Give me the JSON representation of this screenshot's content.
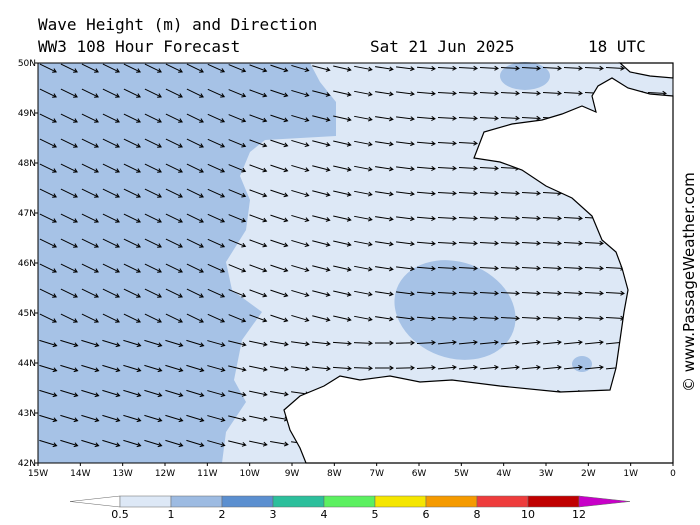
{
  "header": {
    "title": "Wave Height (m) and Direction",
    "subtitle": "WW3 108 Hour Forecast",
    "date": "Sat 21 Jun 2025",
    "time": "18 UTC"
  },
  "map": {
    "lat_labels": [
      "50N",
      "49N",
      "48N",
      "47N",
      "46N",
      "45N",
      "44N",
      "43N",
      "42N"
    ],
    "lon_labels": [
      "15W",
      "14W",
      "13W",
      "12W",
      "11W",
      "10W",
      "9W",
      "8W",
      "7W",
      "6W",
      "5W",
      "4W",
      "3W",
      "2W",
      "1W",
      "0"
    ]
  },
  "legend": {
    "labels": [
      "0.5",
      "1",
      "2",
      "3",
      "4",
      "5",
      "6",
      "8",
      "10",
      "12"
    ],
    "colors": [
      "#dde8f6",
      "#9dbbe2",
      "#5b8fd0",
      "#2cbf9c",
      "#5cf060",
      "#f5e600",
      "#f59a00",
      "#ee3c3c",
      "#c00000"
    ],
    "under_color": "#ffffff",
    "over_color": "#c800c8"
  },
  "credit": "© www.PassageWeather.com"
}
